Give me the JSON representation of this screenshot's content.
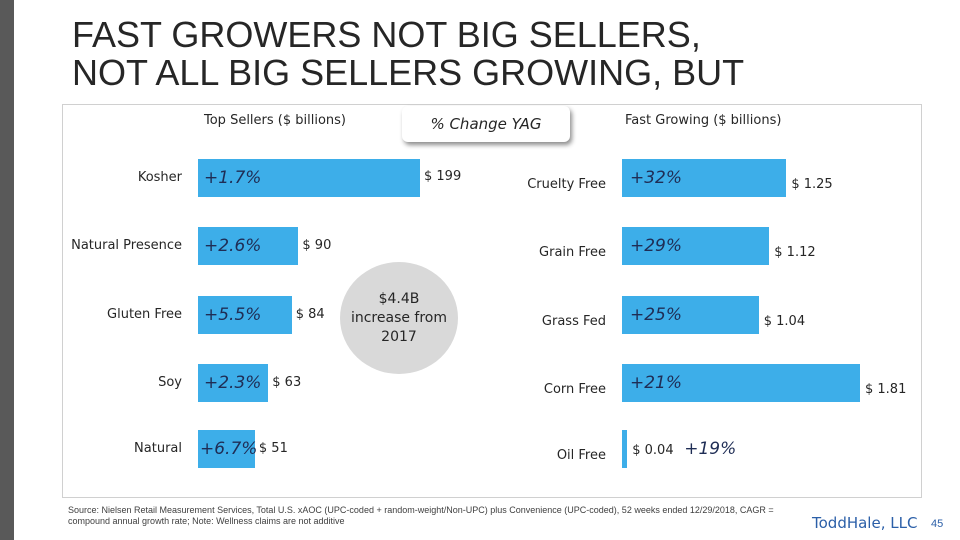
{
  "title_line1": "FAST GROWERS NOT BIG SELLERS,",
  "title_line2": "NOT ALL BIG SELLERS GROWING, BUT",
  "center_label": "% Change YAG",
  "bubble_text": "$4.4B increase from 2017",
  "source": "Source: Nielsen Retail Measurement Services, Total U.S. xAOC (UPC-coded + random-weight/Non-UPC) plus Convenience (UPC-coded), 52 weeks ended 12/29/2018, CAGR = compound annual growth rate; Note: Wellness claims are not additive",
  "logo": "ToddHale, LLC",
  "page_number": "45",
  "colors": {
    "bar": "#3daee9",
    "pct_text": "#1f2d55",
    "bubble": "#d9d9d9"
  },
  "chart_data": [
    {
      "type": "bar",
      "orientation": "horizontal",
      "title": "Top Sellers ($ billions)",
      "categories": [
        "Kosher",
        "Natural Presence",
        "Gluten Free",
        "Soy",
        "Natural"
      ],
      "values": [
        199,
        90,
        84,
        63,
        51
      ],
      "value_labels": [
        "$ 199",
        "$ 90",
        "$ 84",
        "$ 63",
        "$ 51"
      ],
      "pct_change_labels": [
        "+1.7%",
        "+2.6%",
        "+5.5%",
        "+2.3%",
        "+6.7%"
      ],
      "pct_change": [
        1.7,
        2.6,
        5.5,
        2.3,
        6.7
      ],
      "xlim": [
        0,
        199
      ]
    },
    {
      "type": "bar",
      "orientation": "horizontal",
      "title": "Fast Growing ($ billions)",
      "categories": [
        "Cruelty Free",
        "Grain Free",
        "Grass Fed",
        "Corn Free",
        "Oil Free"
      ],
      "values": [
        1.25,
        1.12,
        1.04,
        1.81,
        0.04
      ],
      "value_labels": [
        "$ 1.25",
        "$ 1.12",
        "$ 1.04",
        "$ 1.81",
        "$ 0.04"
      ],
      "pct_change_labels": [
        "+32%",
        "+29%",
        "+25%",
        "+21%",
        "+19%"
      ],
      "pct_change": [
        32,
        29,
        25,
        21,
        19
      ],
      "xlim": [
        0,
        1.81
      ]
    }
  ]
}
